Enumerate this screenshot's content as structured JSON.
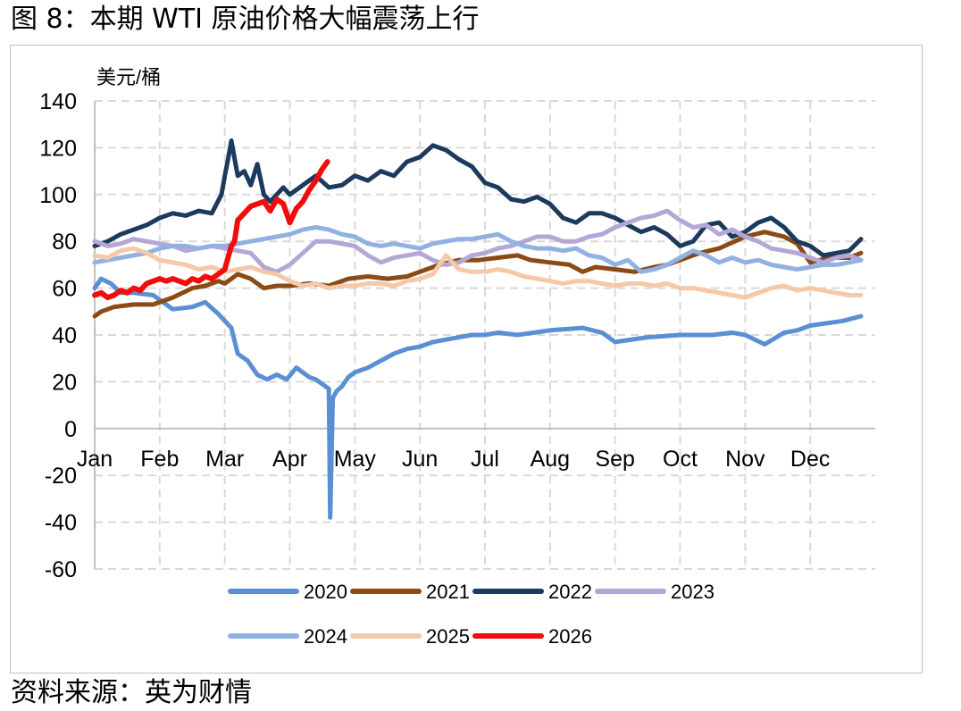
{
  "figure": {
    "title": "图 8：本期 WTI 原油价格大幅震荡上行",
    "source": "资料来源：英为财情"
  },
  "chart_data": {
    "type": "line",
    "title": "",
    "ylabel": "美元/桶",
    "xlabel": "",
    "ylim": [
      -60,
      140
    ],
    "yticks": [
      -60,
      -40,
      -20,
      0,
      20,
      40,
      60,
      80,
      100,
      120,
      140
    ],
    "xlim": [
      0,
      12
    ],
    "x_tick_labels": [
      "Jan",
      "Feb",
      "Mar",
      "Apr",
      "May",
      "Jun",
      "Jul",
      "Aug",
      "Sep",
      "Oct",
      "Nov",
      "Dec"
    ],
    "grid": "dashed-both",
    "legend": "bottom",
    "x_unit": "month-of-year",
    "series": [
      {
        "name": "2020",
        "color": "#5b8fd4",
        "x": [
          0,
          0.1,
          0.25,
          0.4,
          0.6,
          0.9,
          1.2,
          1.5,
          1.7,
          1.9,
          2.0,
          2.1,
          2.2,
          2.35,
          2.5,
          2.65,
          2.8,
          2.95,
          3.1,
          3.3,
          3.4,
          3.5,
          3.6,
          3.62,
          3.66,
          3.72,
          3.8,
          3.9,
          4.0,
          4.2,
          4.4,
          4.6,
          4.8,
          5.0,
          5.2,
          5.4,
          5.6,
          5.8,
          6.0,
          6.2,
          6.5,
          7.0,
          7.5,
          7.8,
          8.0,
          8.5,
          9.0,
          9.5,
          9.8,
          10.0,
          10.3,
          10.6,
          10.8,
          11.0,
          11.5,
          11.78
        ],
        "y": [
          60,
          64,
          62,
          58,
          58,
          57,
          51,
          52,
          54,
          49,
          46,
          43,
          32,
          29,
          23,
          21,
          23,
          21,
          26,
          22,
          21,
          19,
          17,
          -38,
          13,
          16,
          18,
          22,
          24,
          26,
          29,
          32,
          34,
          35,
          37,
          38,
          39,
          40,
          40,
          41,
          40,
          42,
          43,
          41,
          37,
          39,
          40,
          40,
          41,
          40,
          36,
          41,
          42,
          44,
          46,
          48
        ]
      },
      {
        "name": "2021",
        "color": "#8b4a16",
        "x": [
          0,
          0.1,
          0.3,
          0.6,
          0.9,
          1.2,
          1.5,
          1.7,
          1.9,
          2.0,
          2.2,
          2.4,
          2.6,
          2.8,
          3.0,
          3.3,
          3.6,
          3.9,
          4.2,
          4.5,
          4.8,
          5.0,
          5.3,
          5.6,
          5.9,
          6.2,
          6.5,
          6.7,
          7.0,
          7.3,
          7.5,
          7.7,
          8.0,
          8.3,
          8.6,
          8.8,
          9.0,
          9.3,
          9.6,
          10.0,
          10.3,
          10.6,
          10.8,
          11.0,
          11.3,
          11.6,
          11.78
        ],
        "y": [
          48,
          50,
          52,
          53,
          53,
          56,
          60,
          61,
          63,
          62,
          66,
          64,
          60,
          61,
          61,
          62,
          61,
          64,
          65,
          64,
          65,
          67,
          70,
          72,
          72,
          73,
          74,
          72,
          71,
          70,
          67,
          69,
          68,
          67,
          69,
          70,
          72,
          75,
          77,
          82,
          84,
          82,
          79,
          71,
          73,
          73,
          75
        ]
      },
      {
        "name": "2022",
        "color": "#1c3a5e",
        "x": [
          0,
          0.2,
          0.4,
          0.6,
          0.8,
          1.0,
          1.2,
          1.4,
          1.6,
          1.8,
          1.95,
          2.0,
          2.05,
          2.1,
          2.2,
          2.3,
          2.4,
          2.5,
          2.6,
          2.7,
          2.8,
          2.9,
          3.0,
          3.2,
          3.4,
          3.6,
          3.8,
          4.0,
          4.2,
          4.4,
          4.6,
          4.8,
          5.0,
          5.2,
          5.4,
          5.6,
          5.8,
          6.0,
          6.2,
          6.4,
          6.6,
          6.8,
          7.0,
          7.2,
          7.4,
          7.6,
          7.8,
          8.0,
          8.2,
          8.4,
          8.6,
          8.8,
          9.0,
          9.2,
          9.4,
          9.6,
          9.8,
          10.0,
          10.2,
          10.4,
          10.6,
          10.8,
          11.0,
          11.2,
          11.4,
          11.6,
          11.78
        ],
        "y": [
          78,
          80,
          83,
          85,
          87,
          90,
          92,
          91,
          93,
          92,
          100,
          108,
          115,
          123,
          108,
          110,
          104,
          113,
          100,
          97,
          100,
          103,
          100,
          104,
          108,
          103,
          104,
          108,
          106,
          110,
          108,
          114,
          116,
          121,
          119,
          115,
          112,
          105,
          103,
          98,
          97,
          99,
          96,
          90,
          88,
          92,
          92,
          90,
          87,
          84,
          86,
          83,
          78,
          80,
          87,
          88,
          82,
          84,
          88,
          90,
          86,
          80,
          78,
          74,
          75,
          76,
          81
        ]
      },
      {
        "name": "2023",
        "color": "#b4a7d6",
        "x": [
          0,
          0.2,
          0.4,
          0.6,
          0.8,
          1.0,
          1.2,
          1.4,
          1.6,
          1.8,
          2.0,
          2.2,
          2.4,
          2.6,
          2.8,
          3.0,
          3.2,
          3.4,
          3.6,
          3.8,
          4.0,
          4.2,
          4.4,
          4.6,
          4.8,
          5.0,
          5.2,
          5.4,
          5.6,
          5.8,
          6.0,
          6.2,
          6.4,
          6.6,
          6.8,
          7.0,
          7.2,
          7.4,
          7.6,
          7.8,
          8.0,
          8.2,
          8.4,
          8.6,
          8.8,
          9.0,
          9.2,
          9.4,
          9.6,
          9.8,
          10.0,
          10.2,
          10.4,
          10.6,
          10.8,
          11.0,
          11.2,
          11.4,
          11.6,
          11.78
        ],
        "y": [
          80,
          78,
          79,
          81,
          80,
          79,
          78,
          76,
          77,
          78,
          77,
          76,
          75,
          69,
          67,
          70,
          75,
          80,
          80,
          79,
          78,
          74,
          71,
          73,
          74,
          75,
          72,
          70,
          71,
          74,
          75,
          77,
          78,
          80,
          82,
          82,
          80,
          80,
          82,
          83,
          86,
          88,
          90,
          91,
          93,
          89,
          86,
          87,
          83,
          85,
          82,
          80,
          77,
          76,
          75,
          73,
          71,
          73,
          74,
          72
        ]
      },
      {
        "name": "2024",
        "color": "#8fb2e3",
        "x": [
          0,
          0.2,
          0.4,
          0.6,
          0.8,
          1.0,
          1.2,
          1.4,
          1.6,
          1.8,
          2.0,
          2.2,
          2.4,
          2.6,
          2.8,
          3.0,
          3.2,
          3.4,
          3.6,
          3.8,
          4.0,
          4.2,
          4.4,
          4.6,
          4.8,
          5.0,
          5.2,
          5.4,
          5.6,
          5.8,
          6.0,
          6.2,
          6.4,
          6.6,
          6.8,
          7.0,
          7.2,
          7.4,
          7.6,
          7.8,
          8.0,
          8.2,
          8.4,
          8.6,
          8.8,
          9.0,
          9.2,
          9.4,
          9.6,
          9.8,
          10.0,
          10.2,
          10.4,
          10.6,
          10.8,
          11.0,
          11.2,
          11.4,
          11.6,
          11.78
        ],
        "y": [
          71,
          72,
          73,
          74,
          75,
          77,
          78,
          78,
          77,
          78,
          78,
          79,
          80,
          81,
          82,
          83,
          85,
          86,
          85,
          83,
          82,
          79,
          78,
          79,
          78,
          77,
          79,
          80,
          81,
          81,
          82,
          83,
          80,
          78,
          77,
          77,
          76,
          77,
          74,
          73,
          70,
          72,
          67,
          68,
          70,
          73,
          76,
          74,
          71,
          73,
          71,
          72,
          70,
          69,
          68,
          69,
          70,
          70,
          71,
          72
        ]
      },
      {
        "name": "2025",
        "color": "#f5c8a8",
        "x": [
          0,
          0.2,
          0.4,
          0.6,
          0.8,
          1.0,
          1.2,
          1.4,
          1.6,
          1.8,
          2.0,
          2.2,
          2.4,
          2.6,
          2.8,
          3.0,
          3.2,
          3.4,
          3.6,
          3.8,
          4.0,
          4.2,
          4.4,
          4.6,
          4.8,
          5.0,
          5.2,
          5.4,
          5.6,
          5.8,
          6.0,
          6.2,
          6.4,
          6.6,
          6.8,
          7.0,
          7.2,
          7.4,
          7.6,
          7.8,
          8.0,
          8.2,
          8.4,
          8.6,
          8.8,
          9.0,
          9.2,
          9.4,
          9.6,
          9.8,
          10.0,
          10.2,
          10.4,
          10.6,
          10.8,
          11.0,
          11.2,
          11.4,
          11.6,
          11.78
        ],
        "y": [
          74,
          73,
          76,
          77,
          75,
          72,
          71,
          70,
          68,
          69,
          67,
          68,
          69,
          67,
          66,
          63,
          61,
          62,
          60,
          61,
          61,
          62,
          62,
          61,
          63,
          64,
          66,
          74,
          68,
          67,
          67,
          68,
          67,
          65,
          64,
          63,
          62,
          63,
          63,
          62,
          61,
          62,
          62,
          61,
          62,
          60,
          60,
          59,
          58,
          57,
          56,
          58,
          60,
          61,
          59,
          60,
          59,
          58,
          57,
          57
        ]
      },
      {
        "name": "2026",
        "color": "#f20d0d",
        "x": [
          0,
          0.1,
          0.2,
          0.3,
          0.4,
          0.5,
          0.6,
          0.7,
          0.8,
          0.9,
          1.0,
          1.1,
          1.2,
          1.3,
          1.4,
          1.5,
          1.6,
          1.7,
          1.8,
          1.9,
          2.0,
          2.05,
          2.1,
          2.15,
          2.2,
          2.3,
          2.4,
          2.5,
          2.6,
          2.7,
          2.8,
          2.9,
          3.0,
          3.1,
          3.2,
          3.3,
          3.4,
          3.5,
          3.58
        ],
        "y": [
          57,
          58,
          56,
          57,
          59,
          58,
          60,
          59,
          62,
          63,
          64,
          63,
          64,
          63,
          62,
          64,
          63,
          65,
          64,
          66,
          68,
          73,
          78,
          80,
          89,
          92,
          95,
          96,
          97,
          93,
          98,
          96,
          88,
          94,
          97,
          102,
          106,
          111,
          114
        ]
      }
    ]
  }
}
